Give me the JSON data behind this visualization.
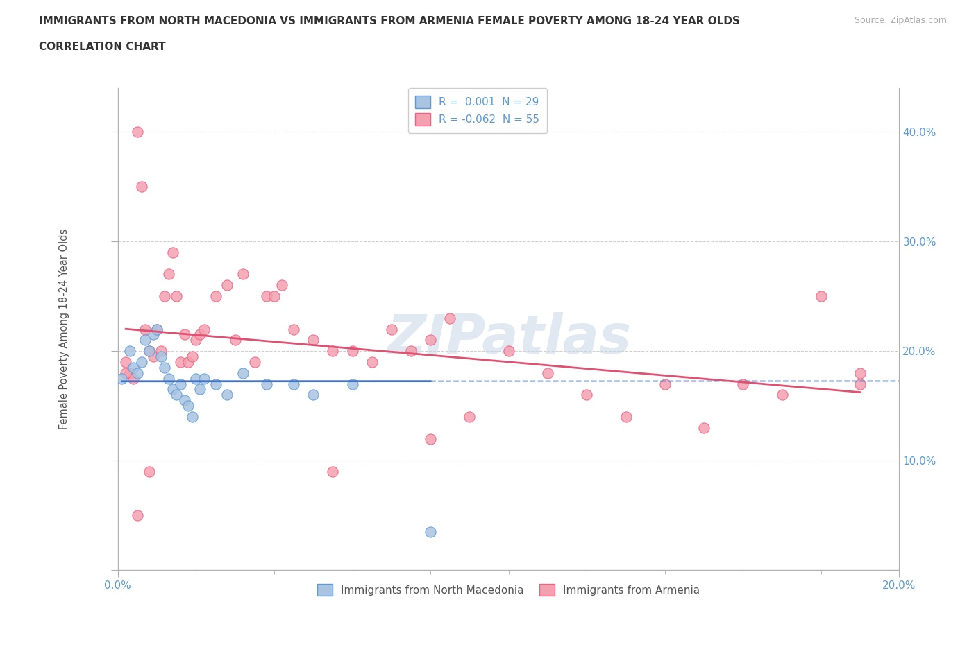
{
  "title_line1": "IMMIGRANTS FROM NORTH MACEDONIA VS IMMIGRANTS FROM ARMENIA FEMALE POVERTY AMONG 18-24 YEAR OLDS",
  "title_line2": "CORRELATION CHART",
  "source_text": "Source: ZipAtlas.com",
  "ylabel": "Female Poverty Among 18-24 Year Olds",
  "xlim": [
    0.0,
    0.2
  ],
  "ylim": [
    0.0,
    0.44
  ],
  "watermark": "ZIPatlas",
  "legend_r1": "R =  0.001  N = 29",
  "legend_r2": "R = -0.062  N = 55",
  "color_blue": "#a8c4e0",
  "color_pink": "#f4a0b0",
  "color_blue_dark": "#5b9bd5",
  "color_pink_dark": "#f06080",
  "color_blue_line": "#4472c4",
  "color_pink_line": "#e05070",
  "color_axis": "#b0b0b0",
  "color_grid": "#d0d0d0",
  "scatter_size": 120,
  "north_macedonia_x": [
    0.001,
    0.003,
    0.004,
    0.005,
    0.006,
    0.007,
    0.008,
    0.009,
    0.01,
    0.011,
    0.012,
    0.013,
    0.014,
    0.015,
    0.016,
    0.017,
    0.018,
    0.019,
    0.02,
    0.021,
    0.022,
    0.025,
    0.028,
    0.032,
    0.038,
    0.045,
    0.05,
    0.06,
    0.08
  ],
  "north_macedonia_y": [
    0.175,
    0.2,
    0.185,
    0.18,
    0.19,
    0.21,
    0.2,
    0.215,
    0.22,
    0.195,
    0.185,
    0.175,
    0.165,
    0.16,
    0.17,
    0.155,
    0.15,
    0.14,
    0.175,
    0.165,
    0.175,
    0.17,
    0.16,
    0.18,
    0.17,
    0.17,
    0.16,
    0.17,
    0.035
  ],
  "armenia_x": [
    0.002,
    0.003,
    0.004,
    0.005,
    0.006,
    0.007,
    0.008,
    0.009,
    0.01,
    0.011,
    0.012,
    0.013,
    0.014,
    0.015,
    0.016,
    0.017,
    0.018,
    0.019,
    0.02,
    0.021,
    0.022,
    0.025,
    0.028,
    0.03,
    0.032,
    0.035,
    0.038,
    0.04,
    0.042,
    0.045,
    0.05,
    0.055,
    0.06,
    0.065,
    0.07,
    0.075,
    0.08,
    0.085,
    0.09,
    0.1,
    0.11,
    0.12,
    0.13,
    0.14,
    0.15,
    0.16,
    0.17,
    0.18,
    0.19,
    0.002,
    0.005,
    0.008,
    0.055,
    0.08,
    0.19
  ],
  "armenia_y": [
    0.19,
    0.18,
    0.175,
    0.4,
    0.35,
    0.22,
    0.2,
    0.195,
    0.22,
    0.2,
    0.25,
    0.27,
    0.29,
    0.25,
    0.19,
    0.215,
    0.19,
    0.195,
    0.21,
    0.215,
    0.22,
    0.25,
    0.26,
    0.21,
    0.27,
    0.19,
    0.25,
    0.25,
    0.26,
    0.22,
    0.21,
    0.2,
    0.2,
    0.19,
    0.22,
    0.2,
    0.21,
    0.23,
    0.14,
    0.2,
    0.18,
    0.16,
    0.14,
    0.17,
    0.13,
    0.17,
    0.16,
    0.25,
    0.18,
    0.18,
    0.05,
    0.09,
    0.09,
    0.12,
    0.17
  ]
}
